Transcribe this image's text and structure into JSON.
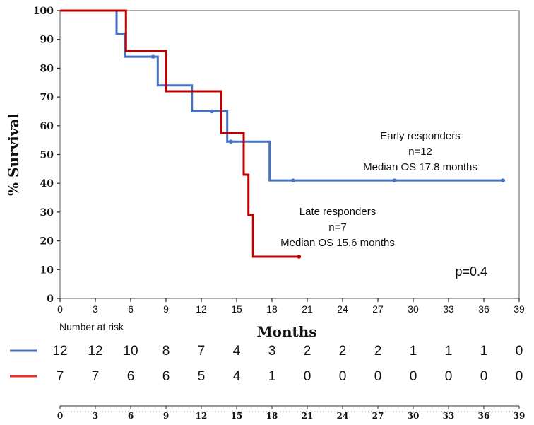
{
  "chart_data": {
    "type": "line",
    "subtype": "kaplan-meier",
    "ylabel": "% Survival",
    "xlabel": "Months",
    "ylim": [
      0,
      100
    ],
    "xlim": [
      0,
      39
    ],
    "yticks": [
      0,
      10,
      20,
      30,
      40,
      50,
      60,
      70,
      80,
      90,
      100
    ],
    "xticks": [
      0,
      3,
      6,
      9,
      12,
      15,
      18,
      21,
      24,
      27,
      30,
      33,
      36,
      39
    ],
    "p_value": "p=0.4",
    "series": [
      {
        "name": "Early responders",
        "color": "#4472c4",
        "steps": [
          [
            0,
            100
          ],
          [
            4.8,
            100
          ],
          [
            4.8,
            92
          ],
          [
            5.5,
            92
          ],
          [
            5.5,
            84
          ],
          [
            8.3,
            84
          ],
          [
            8.3,
            74
          ],
          [
            11.2,
            74
          ],
          [
            11.2,
            65
          ],
          [
            14.2,
            65
          ],
          [
            14.2,
            54.5
          ],
          [
            17.8,
            54.5
          ],
          [
            17.8,
            41
          ],
          [
            37.8,
            41
          ]
        ],
        "censored": [
          [
            7.9,
            84
          ],
          [
            12.9,
            65
          ],
          [
            14.5,
            54.5
          ],
          [
            19.8,
            41
          ],
          [
            28.4,
            41
          ],
          [
            37.6,
            41
          ]
        ],
        "annotation": [
          "Early responders",
          "n=12",
          "Median OS 17.8 months"
        ]
      },
      {
        "name": "Late responders",
        "color": "#c00000",
        "steps": [
          [
            0,
            100
          ],
          [
            5.6,
            100
          ],
          [
            5.6,
            86
          ],
          [
            9.0,
            86
          ],
          [
            9.0,
            72
          ],
          [
            13.7,
            72
          ],
          [
            13.7,
            57.5
          ],
          [
            15.6,
            57.5
          ],
          [
            15.6,
            43
          ],
          [
            16.0,
            43
          ],
          [
            16.0,
            29
          ],
          [
            16.4,
            29
          ],
          [
            16.4,
            14.5
          ],
          [
            20.3,
            14.5
          ]
        ],
        "censored": [
          [
            20.3,
            14.5
          ]
        ],
        "annotation": [
          "Late responders",
          "n=7",
          "Median OS 15.6 months"
        ]
      }
    ],
    "risk_table": {
      "title": "Number at risk",
      "rows": [
        {
          "color": "#4472c4",
          "values": [
            "12",
            "12",
            "10",
            "8",
            "7",
            "4",
            "3",
            "2",
            "2",
            "2",
            "1",
            "1",
            "1",
            "0"
          ]
        },
        {
          "color": "#e03030",
          "values": [
            "7",
            "7",
            "6",
            "6",
            "5",
            "4",
            "1",
            "0",
            "0",
            "0",
            "0",
            "0",
            "0",
            "0"
          ]
        }
      ],
      "axis_ticks": [
        "0",
        "3",
        "6",
        "9",
        "12",
        "15",
        "18",
        "21",
        "24",
        "27",
        "30",
        "33",
        "36",
        "39"
      ]
    }
  }
}
